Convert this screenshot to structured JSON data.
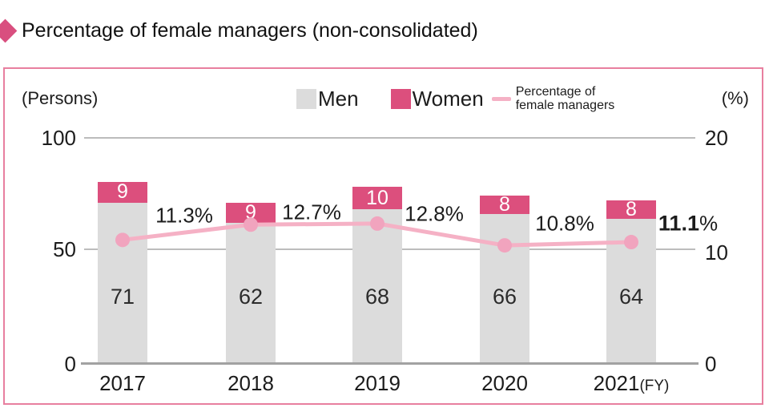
{
  "title": "Percentage of female managers (non-consolidated)",
  "legend": {
    "men_label": "Men",
    "women_label": "Women",
    "line_label_line1": "Percentage of",
    "line_label_line2": "female managers"
  },
  "axes": {
    "left_unit": "(Persons)",
    "right_unit": "(%)",
    "left_ticks": [
      "100",
      "50",
      "0"
    ],
    "right_ticks": [
      "20",
      "10",
      "0"
    ],
    "fy_suffix": "(FY)"
  },
  "chart_data": {
    "type": "bar",
    "subtype": "stacked bars with overlay line",
    "categories": [
      "2017",
      "2018",
      "2019",
      "2020",
      "2021"
    ],
    "series": [
      {
        "name": "Men",
        "type": "bar",
        "values": [
          71,
          62,
          68,
          66,
          64
        ]
      },
      {
        "name": "Women",
        "type": "bar",
        "values": [
          9,
          9,
          10,
          8,
          8
        ]
      },
      {
        "name": "Percentage of female managers",
        "type": "line",
        "values": [
          11.3,
          12.7,
          12.8,
          10.8,
          11.1
        ],
        "labels": [
          "11.3%",
          "12.7%",
          "12.8%",
          "10.8%",
          "11.1%"
        ],
        "emphasized_label_index": 4
      }
    ],
    "left_axis": {
      "label": "(Persons)",
      "range": [
        0,
        100
      ],
      "ticks": [
        0,
        50,
        100
      ]
    },
    "right_axis": {
      "label": "(%)",
      "range": [
        0,
        20
      ],
      "ticks": [
        0,
        10,
        20
      ]
    },
    "legend_position": "top",
    "grid": "horizontal"
  },
  "colors": {
    "accent_diamond": "#d94f7f",
    "men_bar": "#dcdcdc",
    "women_bar": "#dc4f7d",
    "line": "#f5b1c5",
    "dot": "#f1a4be",
    "border": "#e87f9f",
    "grid": "#bcbcbc",
    "baseline": "#a2a2a2"
  }
}
